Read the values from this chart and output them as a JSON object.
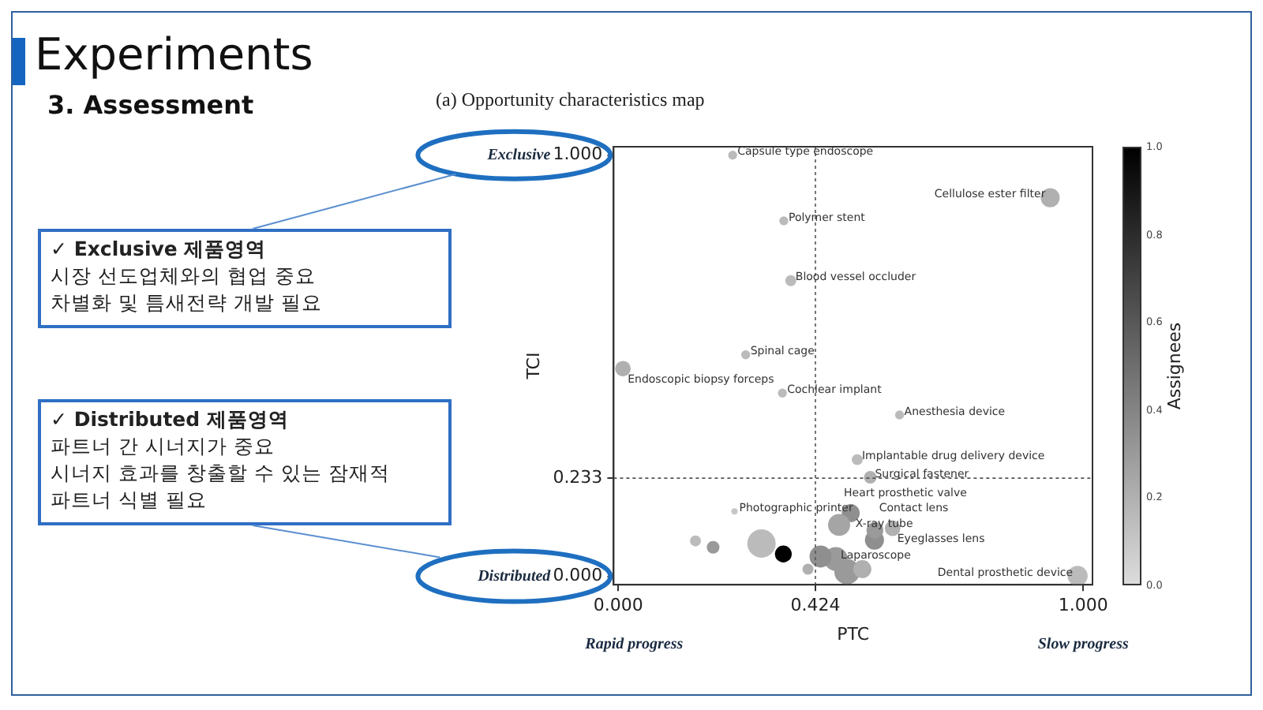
{
  "chart_data": {
    "type": "bubble",
    "title": "Experiments",
    "subtitle": "3. Assessment",
    "xlabel": "PTC",
    "ylabel": "TCI",
    "clabel": "Assignees",
    "x": [
      0.246,
      0.929,
      0.356,
      0.371,
      0.274,
      0.01,
      0.353,
      0.605,
      0.514,
      0.542,
      0.25,
      0.5,
      0.475,
      0.59,
      0.551,
      0.468,
      0.988,
      0.166,
      0.204,
      0.308,
      0.355,
      0.408,
      0.492,
      0.525,
      0.435,
      0.552
    ],
    "values": [
      1.0,
      0.899,
      0.844,
      0.702,
      0.526,
      0.493,
      0.435,
      0.383,
      0.277,
      0.235,
      0.154,
      0.15,
      0.122,
      0.114,
      0.086,
      0.041,
      0.001,
      0.084,
      0.069,
      0.078,
      0.053,
      0.017,
      0.011,
      0.017,
      0.047,
      0.109
    ],
    "sizes": [
      0.1,
      0.45,
      0.1,
      0.15,
      0.1,
      0.3,
      0.1,
      0.1,
      0.15,
      0.2,
      0.05,
      0.4,
      0.6,
      0.3,
      0.45,
      0.7,
      0.5,
      0.15,
      0.2,
      1.0,
      0.35,
      0.15,
      0.8,
      0.4,
      0.6,
      0.35
    ],
    "cvalues": [
      0.15,
      0.2,
      0.15,
      0.15,
      0.15,
      0.2,
      0.15,
      0.15,
      0.15,
      0.2,
      0.1,
      0.35,
      0.25,
      0.2,
      0.35,
      0.3,
      0.15,
      0.15,
      0.3,
      0.15,
      1.0,
      0.2,
      0.3,
      0.2,
      0.35,
      0.3
    ],
    "clim": [
      0,
      1
    ],
    "cticks": [
      {
        "value": 0,
        "label": "0.0"
      },
      {
        "value": 0.2,
        "label": "0.2"
      },
      {
        "value": 0.4,
        "label": "0.4"
      },
      {
        "value": 0.6,
        "label": "0.6"
      },
      {
        "value": 0.8,
        "label": "0.8"
      },
      {
        "value": 1,
        "label": "1.0"
      }
    ],
    "xlim": [
      -0.01,
      1.02
    ],
    "ylim": [
      -0.02,
      1.02
    ],
    "xticks": [
      {
        "value": 0,
        "label": "0.000"
      },
      {
        "value": 0.424,
        "label": "0.424"
      },
      {
        "value": 1,
        "label": "1.000"
      }
    ],
    "yticks": [
      {
        "value": 0,
        "label": "0.000"
      },
      {
        "value": 0.233,
        "label": "0.233"
      },
      {
        "value": 1,
        "label": "1.000"
      }
    ],
    "ref_lines": [
      {
        "axis": "x",
        "value": 0.424,
        "line_style": "dotted",
        "color": "#555555"
      },
      {
        "axis": "y",
        "value": 0.233,
        "line_style": "dotted",
        "color": "#555555"
      }
    ],
    "grid": false,
    "legend": false,
    "annotations": [
      "(a) Opportunity characteristics map",
      "Exclusive",
      "Distributed",
      "Rapid progress",
      "Slow progress",
      "✓ Exclusive 제품영역\n시장 선도업체와의 협업 중요\n차별화 및 틈새전략 개발 필요",
      "✓ Distributed 제품영역\n파트너 간 시너지가 중요\n시너지 효과를 창출할 수 있는 잠재적\n파트너 식별 필요",
      {
        "text": "Capsule type endoscope",
        "x": 0.246,
        "y": 1.0
      },
      {
        "text": "Cellulose ester filter",
        "x": 0.929,
        "y": 0.899
      },
      {
        "text": "Polymer stent",
        "x": 0.356,
        "y": 0.844
      },
      {
        "text": "Blood vessel occluder",
        "x": 0.371,
        "y": 0.702
      },
      {
        "text": "Spinal cage",
        "x": 0.274,
        "y": 0.526
      },
      {
        "text": "Endoscopic biopsy forceps",
        "x": 0.01,
        "y": 0.493
      },
      {
        "text": "Cochlear implant",
        "x": 0.353,
        "y": 0.435
      },
      {
        "text": "Anesthesia device",
        "x": 0.605,
        "y": 0.383
      },
      {
        "text": "Implantable drug delivery device",
        "x": 0.514,
        "y": 0.277
      },
      {
        "text": "Surgical fastener",
        "x": 0.542,
        "y": 0.235
      },
      {
        "text": "Photographic printer",
        "x": 0.25,
        "y": 0.154
      },
      {
        "text": "X-ray tube",
        "x": 0.5,
        "y": 0.15
      },
      {
        "text": "Heart prosthetic valve",
        "x": 0.475,
        "y": 0.122
      },
      {
        "text": "Eyeglasses lens",
        "x": 0.59,
        "y": 0.114
      },
      {
        "text": "Contact lens",
        "x": 0.551,
        "y": 0.086
      },
      {
        "text": "Laparoscope",
        "x": 0.468,
        "y": 0.041
      },
      {
        "text": "Dental prosthetic device",
        "x": 0.988,
        "y": 0.001
      }
    ]
  }
}
